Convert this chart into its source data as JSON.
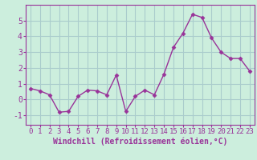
{
  "x": [
    0,
    1,
    2,
    3,
    4,
    5,
    6,
    7,
    8,
    9,
    10,
    11,
    12,
    13,
    14,
    15,
    16,
    17,
    18,
    19,
    20,
    21,
    22,
    23
  ],
  "y": [
    0.7,
    0.55,
    0.3,
    -0.8,
    -0.75,
    0.2,
    0.6,
    0.55,
    0.3,
    1.55,
    -0.75,
    0.2,
    0.6,
    0.3,
    1.6,
    3.3,
    4.2,
    5.4,
    5.2,
    3.9,
    3.0,
    2.6,
    2.6,
    1.8
  ],
  "line_color": "#993399",
  "marker": "D",
  "marker_size": 2.5,
  "line_width": 1.0,
  "bg_color": "#cceedd",
  "grid_color": "#aacccc",
  "xlabel": "Windchill (Refroidissement éolien,°C)",
  "xlabel_color": "#993399",
  "xlabel_fontsize": 7,
  "ylabel_ticks": [
    -1,
    0,
    1,
    2,
    3,
    4,
    5
  ],
  "xlim": [
    -0.5,
    23.5
  ],
  "ylim": [
    -1.6,
    6.0
  ],
  "xtick_labels": [
    "0",
    "1",
    "2",
    "3",
    "4",
    "5",
    "6",
    "7",
    "8",
    "9",
    "10",
    "11",
    "12",
    "13",
    "14",
    "15",
    "16",
    "17",
    "18",
    "19",
    "20",
    "21",
    "22",
    "23"
  ],
  "tick_color": "#993399",
  "tick_fontsize": 6.5
}
